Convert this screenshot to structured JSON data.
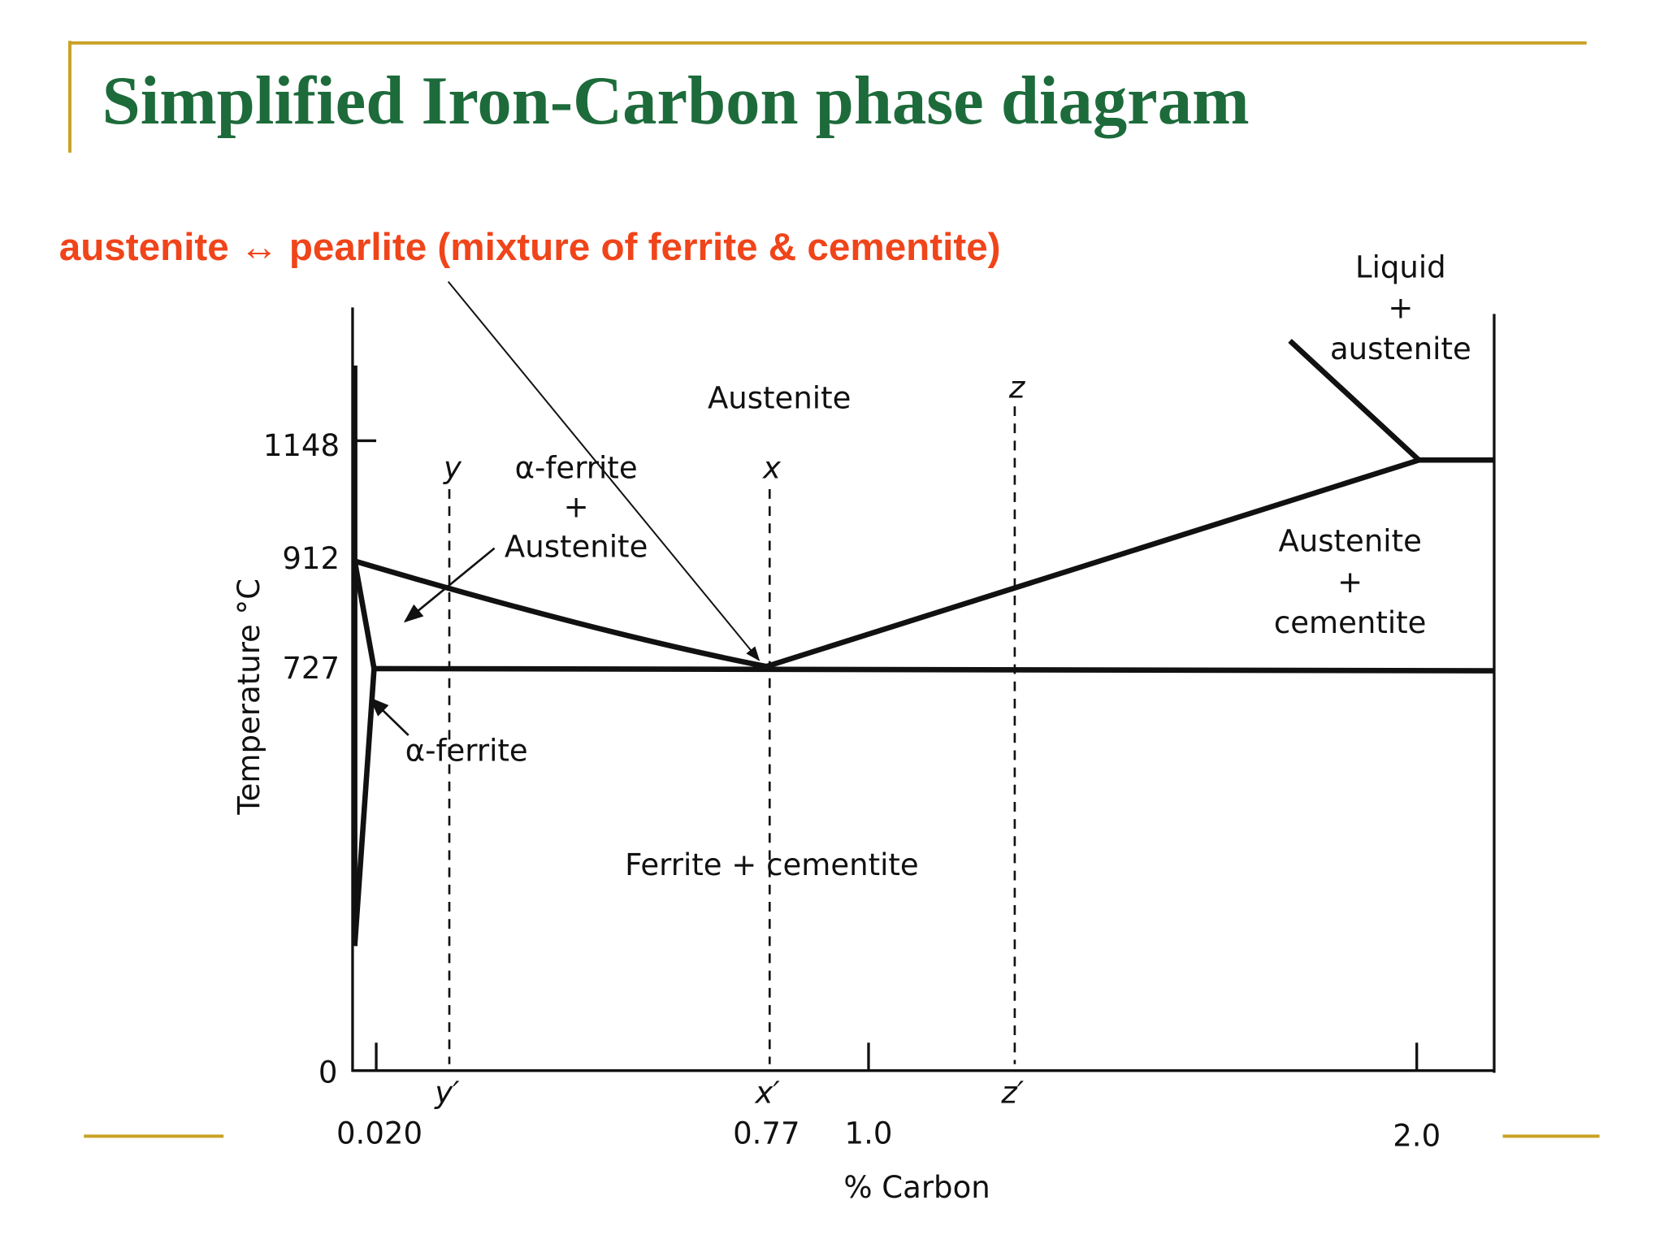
{
  "title": "Simplified Iron-Carbon phase diagram",
  "annotation": "austenite  ↔ pearlite (mixture of  ferrite & cementite)",
  "y_axis": {
    "label": "Temperature °C",
    "ticks": [
      "1148",
      "912",
      "727",
      "0"
    ]
  },
  "x_axis": {
    "label": "% Carbon",
    "ticks": [
      "0.020",
      "0.77",
      "1.0",
      "2.0"
    ]
  },
  "regions": {
    "austenite": "Austenite",
    "ferrite_austenite": [
      "α-ferrite",
      "+",
      "Austenite"
    ],
    "liquid_austenite": [
      "Liquid",
      "+",
      "austenite"
    ],
    "austenite_cementite": [
      "Austenite",
      "+",
      "cementite"
    ],
    "ferrite": "α-ferrite",
    "ferrite_cementite": "Ferrite + cementite"
  },
  "composition_lines": {
    "top": [
      "y",
      "x",
      "z"
    ],
    "bottom": [
      "y′",
      "x′",
      "z′"
    ]
  }
}
